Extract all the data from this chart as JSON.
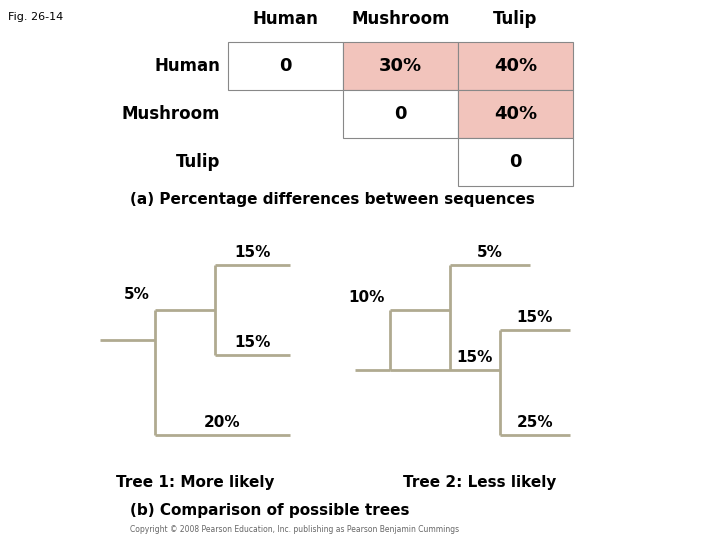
{
  "fig_label": "Fig. 26-14",
  "table": {
    "col_headers": [
      "Human",
      "Mushroom",
      "Tulip"
    ],
    "row_headers": [
      "Human",
      "Mushroom",
      "Tulip"
    ],
    "cells": [
      [
        "0",
        "30%",
        "40%"
      ],
      [
        "",
        "0",
        "40%"
      ],
      [
        "",
        "",
        "0"
      ]
    ],
    "cell_colors": [
      [
        "#ffffff",
        "#f2c4bc",
        "#f2c4bc"
      ],
      [
        "#ffffff",
        "#ffffff",
        "#f2c4bc"
      ],
      [
        "#ffffff",
        "#ffffff",
        "#ffffff"
      ]
    ]
  },
  "table_caption": "(a) Percentage differences between sequences",
  "tree1_label": "Tree 1: More likely",
  "tree2_label": "Tree 2: Less likely",
  "tree_caption": "(b) Comparison of possible trees",
  "line_color": "#b0aa90",
  "text_color": "#000000",
  "background_color": "#ffffff",
  "copyright_text": "Copyright © 2008 Pearson Education, Inc. publishing as Pearson Benjamin Cummings"
}
